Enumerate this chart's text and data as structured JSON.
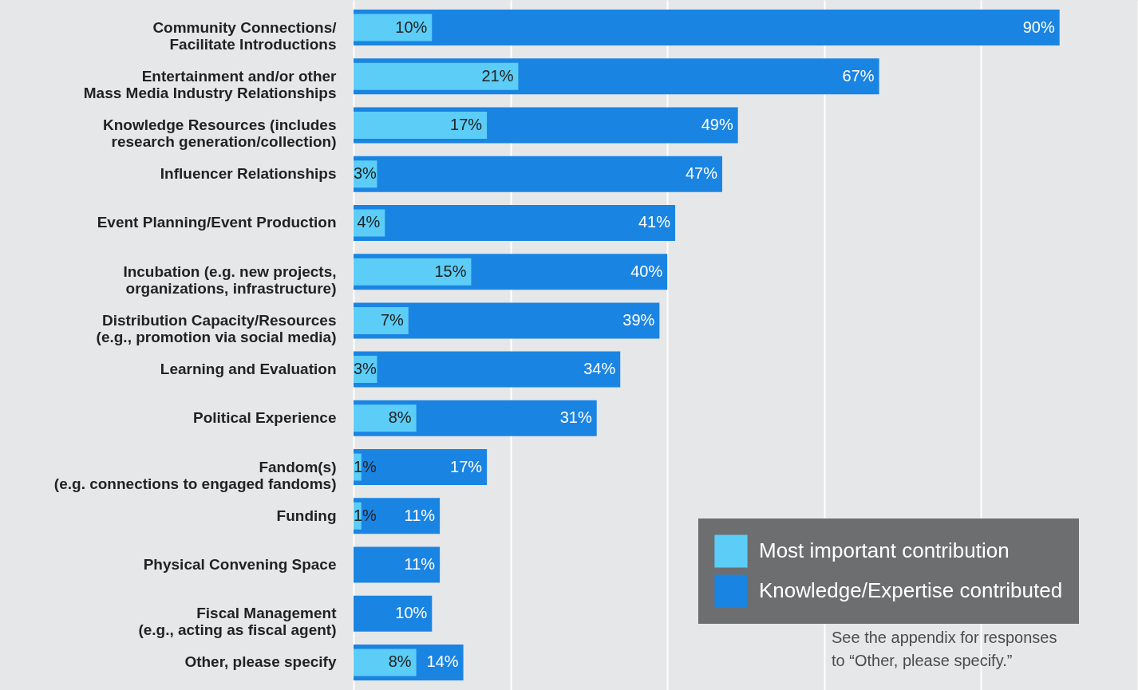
{
  "chart_data": {
    "type": "bar",
    "orientation": "horizontal",
    "categories": [
      "Community Connections/\nFacilitate Introductions",
      "Entertainment and/or other\nMass Media Industry Relationships",
      "Knowledge Resources (includes\nresearch generation/collection)",
      "Influencer Relationships",
      "Event Planning/Event Production",
      "Incubation (e.g. new projects,\norganizations, infrastructure)",
      "Distribution Capacity/Resources\n(e.g., promotion via social media)",
      "Learning and Evaluation",
      "Political Experience",
      "Fandom(s)\n(e.g. connections to engaged fandoms)",
      "Funding",
      "Physical Convening Space",
      "Fiscal Management\n(e.g., acting as fiscal agent)",
      "Other, please specify"
    ],
    "series": [
      {
        "name": "Knowledge/Expertise contributed",
        "color": "#1a84e2",
        "values": [
          90,
          67,
          49,
          47,
          41,
          40,
          39,
          34,
          31,
          17,
          11,
          11,
          10,
          14
        ],
        "value_labels": [
          "90%",
          "67%",
          "49%",
          "47%",
          "41%",
          "40%",
          "39%",
          "34%",
          "31%",
          "17%",
          "11%",
          "11%",
          "10%",
          "14%"
        ]
      },
      {
        "name": "Most important contribution",
        "color": "#5bcdf7",
        "values": [
          10,
          21,
          17,
          3,
          4,
          15,
          7,
          3,
          8,
          1,
          1,
          null,
          null,
          8
        ],
        "value_labels": [
          "10%",
          "21%",
          "17%",
          "3%",
          "4%",
          "15%",
          "7%",
          "3%",
          "8%",
          "1%",
          "1%",
          null,
          null,
          "8%"
        ]
      }
    ],
    "xlim": [
      0,
      100
    ],
    "xticks": [
      {
        "value": 0,
        "label": null
      },
      {
        "value": 20,
        "label": null
      },
      {
        "value": 40,
        "label": null
      },
      {
        "value": 60,
        "label": null
      },
      {
        "value": 80,
        "label": null
      },
      {
        "value": 100,
        "label": null
      }
    ],
    "tick_labels": "y",
    "grid": "x",
    "legend": "bottom right",
    "annotations": [
      "See the appendix for responses\nto “Other, please specify.”"
    ]
  }
}
